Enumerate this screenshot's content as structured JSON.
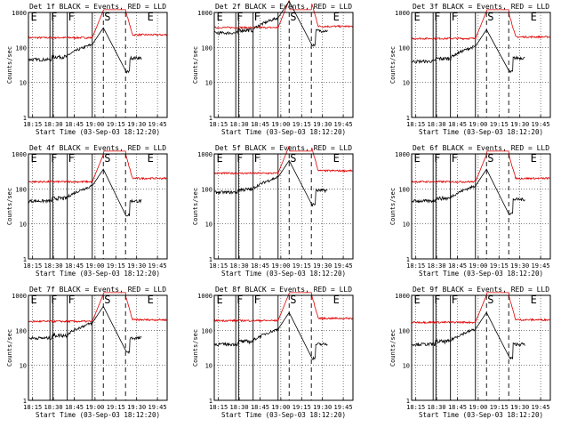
{
  "chart_data": {
    "type": "line",
    "shared": {
      "ylabel": "Counts/sec",
      "xlabel": "Start Time (03-Sep-03 18:12:20)",
      "x_tick_labels": [
        "18:15",
        "18:30",
        "18:45",
        "19:00",
        "19:15",
        "19:30",
        "19:45"
      ],
      "x_ticks_min": [
        3,
        18,
        33,
        48,
        63,
        78,
        93
      ],
      "x_range_min": [
        0,
        100
      ],
      "y_tick_labels": [
        "1",
        "10",
        "100",
        "1000"
      ],
      "y_ticks": [
        1,
        10,
        100,
        1000
      ],
      "y_range": [
        1,
        1000
      ],
      "y_scale": "log",
      "legend": "BLACK = Events, RED = LLD",
      "series_colors": {
        "events": "#000000",
        "lld": "#e00000"
      },
      "markers": [
        {
          "label": "E",
          "x_min": 1,
          "style": "none"
        },
        {
          "label": "F",
          "x_min": 15.5,
          "style": "solid"
        },
        {
          "label": "",
          "x_min": 17.5,
          "style": "solid"
        },
        {
          "label": "F",
          "x_min": 28,
          "style": "solid"
        },
        {
          "label": "",
          "x_min": 46,
          "style": "solid"
        },
        {
          "label": "S",
          "x_min": 54,
          "style": "dashed"
        },
        {
          "label": "",
          "x_min": 70,
          "style": "dashed"
        },
        {
          "label": "E",
          "x_min": 85,
          "style": "none"
        }
      ]
    },
    "detectors": [
      {
        "title": "Det 1f BLACK = Events, RED = LLD",
        "events_level": 45,
        "lld_level": 190,
        "post_events": 50,
        "post_lld": 230
      },
      {
        "title": "Det 2f BLACK = Events, RED = LLD",
        "events_level": 260,
        "lld_level": 370,
        "post_events": 300,
        "post_lld": 400
      },
      {
        "title": "Det 3f BLACK = Events, RED = LLD",
        "events_level": 40,
        "lld_level": 180,
        "post_events": 50,
        "post_lld": 200
      },
      {
        "title": "Det 4f BLACK = Events, RED = LLD",
        "events_level": 45,
        "lld_level": 160,
        "post_events": 45,
        "post_lld": 200
      },
      {
        "title": "Det 5f BLACK = Events, RED = LLD",
        "events_level": 80,
        "lld_level": 280,
        "post_events": 90,
        "post_lld": 330
      },
      {
        "title": "Det 6f BLACK = Events, RED = LLD",
        "events_level": 45,
        "lld_level": 160,
        "post_events": 50,
        "post_lld": 200
      },
      {
        "title": "Det 7f BLACK = Events, RED = LLD",
        "events_level": 60,
        "lld_level": 180,
        "post_events": 60,
        "post_lld": 200
      },
      {
        "title": "Det 8f BLACK = Events, RED = LLD",
        "events_level": 40,
        "lld_level": 190,
        "post_events": 40,
        "post_lld": 220
      },
      {
        "title": "Det 9f BLACK = Events, RED = LLD",
        "events_level": 40,
        "lld_level": 170,
        "post_events": 40,
        "post_lld": 200
      }
    ]
  }
}
